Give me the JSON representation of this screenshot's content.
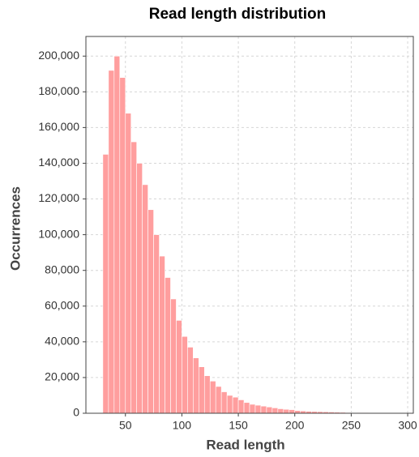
{
  "chart_data": {
    "type": "histogram",
    "title": "Read length distribution",
    "x_label": "Read length",
    "y_label": "Occurrences",
    "color": "#ff9e9e",
    "bins": [
      30,
      35,
      40,
      45,
      50,
      55,
      60,
      65,
      70,
      75,
      80,
      85,
      90,
      95,
      100,
      105,
      110,
      115,
      120,
      125,
      130,
      135,
      140,
      145,
      150,
      155,
      160,
      165,
      170,
      175,
      180,
      185,
      190,
      195,
      200,
      205,
      210,
      215,
      220,
      225,
      230,
      235,
      240,
      245,
      250,
      255,
      260,
      265,
      270,
      275,
      280,
      285,
      290,
      295,
      300
    ],
    "values": [
      145000,
      192000,
      200000,
      188000,
      168000,
      152000,
      140000,
      128000,
      114000,
      100000,
      88000,
      76000,
      64000,
      52000,
      43000,
      37000,
      31000,
      26000,
      21000,
      18000,
      15000,
      12000,
      10000,
      9000,
      7500,
      6000,
      5000,
      4500,
      4000,
      3500,
      3000,
      2500,
      2200,
      2000,
      1500,
      1300,
      1100,
      1000,
      900,
      800,
      700,
      600,
      500,
      400,
      350,
      300,
      250,
      200,
      150,
      120,
      100,
      80,
      60,
      50
    ],
    "xlim": [
      15,
      305
    ],
    "ylim": [
      0,
      211000
    ],
    "xticks": [
      50,
      100,
      150,
      200,
      250,
      300
    ],
    "yticks": [
      0,
      {
        "value": 20000,
        "label": "20,000"
      },
      {
        "value": 40000,
        "label": "40,000"
      },
      {
        "value": 60000,
        "label": "60,000"
      },
      {
        "value": 80000,
        "label": "80,000"
      },
      {
        "value": 100000,
        "label": "100,000"
      },
      {
        "value": 120000,
        "label": "120,000"
      },
      {
        "value": 140000,
        "label": "140,000"
      },
      {
        "value": 160000,
        "label": "160,000"
      },
      {
        "value": 180000,
        "label": "180,000"
      },
      {
        "value": 200000,
        "label": "200,000"
      }
    ],
    "grid": true
  }
}
